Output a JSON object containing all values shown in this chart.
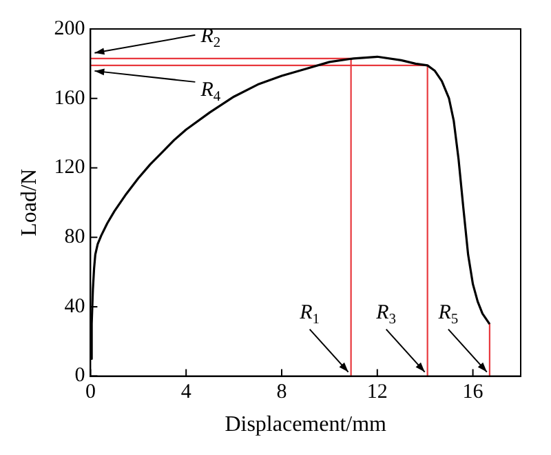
{
  "chart_data": {
    "type": "line",
    "xlabel": "Displacement/mm",
    "ylabel": "Load/N",
    "xlim": [
      0,
      18
    ],
    "xticks": [
      0,
      4,
      8,
      12,
      16
    ],
    "ylim": [
      0,
      200
    ],
    "yticks": [
      0,
      40,
      80,
      120,
      160,
      200
    ],
    "grid": false,
    "legend": false,
    "marker": "none",
    "line_style": "solid",
    "series": [
      {
        "color": "#000000",
        "x": [
          0.02,
          0.05,
          0.1,
          0.15,
          0.2,
          0.3,
          0.45,
          0.7,
          1,
          1.5,
          2,
          2.5,
          3,
          3.5,
          4,
          5,
          6,
          7,
          8,
          9,
          10,
          11,
          12,
          13,
          13.6,
          14.1,
          14.4,
          14.7,
          15,
          15.2,
          15.4,
          15.6,
          15.8,
          16,
          16.2,
          16.4,
          16.7
        ],
        "values": [
          10,
          30,
          50,
          62,
          70,
          76,
          81,
          88,
          95,
          105,
          114,
          122,
          129,
          136,
          142,
          152,
          161,
          168,
          173,
          177,
          181,
          183,
          184,
          182,
          180,
          179,
          176,
          170,
          160,
          147,
          125,
          97,
          70,
          53,
          43,
          36,
          30
        ]
      },
      {
        "color": "#e8383d",
        "x": [
          0,
          10.9,
          10.9
        ],
        "values": [
          183,
          183,
          0
        ]
      },
      {
        "color": "#e8383d",
        "x": [
          0,
          14.1,
          14.1
        ],
        "values": [
          179,
          179,
          0
        ]
      },
      {
        "color": "#e8383d",
        "x": [
          16.7,
          16.7
        ],
        "values": [
          30,
          0
        ]
      }
    ],
    "annotations": [
      {
        "text": "R$_{2}$",
        "x": 0,
        "y": 183
      },
      {
        "text": "R$_{4}$",
        "x": 0,
        "y": 179
      },
      {
        "text": "R$_{1}$",
        "x": 10.9,
        "y": 0
      },
      {
        "text": "R$_{3}$",
        "x": 14.1,
        "y": 0
      },
      {
        "text": "R$_{5}$",
        "x": 16.7,
        "y": 0
      }
    ]
  }
}
